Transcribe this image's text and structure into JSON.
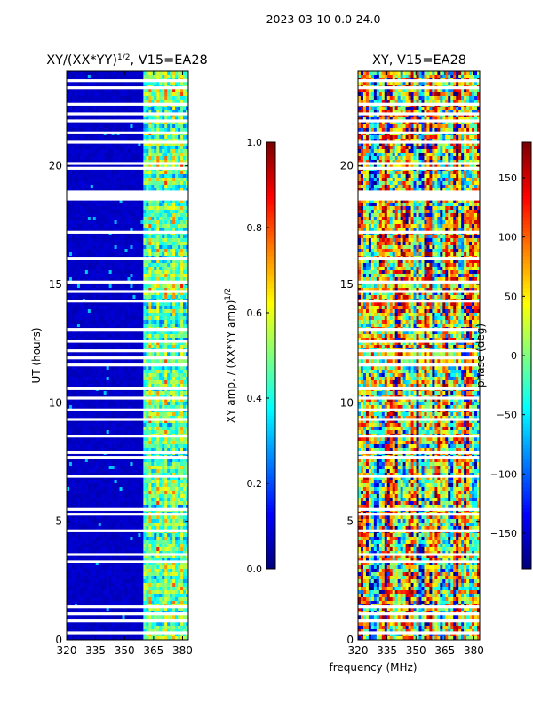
{
  "figure_title": "2023-03-10 0.0-24.0",
  "chart_data": [
    {
      "type": "heatmap",
      "title_main": "XY/(XX*YY)",
      "title_sup": "1/2",
      "title_rest": ", V15=EA28",
      "xlabel": "",
      "ylabel": "UT (hours)",
      "xlim": [
        320,
        383
      ],
      "ylim": [
        0,
        24
      ],
      "xticks": [
        320,
        335,
        350,
        365,
        380
      ],
      "yticks": [
        0,
        5,
        10,
        15,
        20
      ],
      "colormap": "jet",
      "colorbar": {
        "label_main": "XY amp. / (XX*YY amp)",
        "label_sup": "1/2",
        "range": [
          0.0,
          1.0
        ],
        "ticks": [
          "0.0",
          "0.2",
          "0.4",
          "0.6",
          "0.8",
          "1.0"
        ],
        "tick_values": [
          0.0,
          0.2,
          0.4,
          0.6,
          0.8,
          1.0
        ]
      },
      "structure": {
        "low_band_MHz": [
          320,
          360
        ],
        "low_band_level": 0.05,
        "high_band_MHz": [
          360,
          383
        ],
        "high_band_level_range": [
          0.2,
          0.75
        ],
        "flagged_blank_rows_UT": [
          0.3,
          0.8,
          1.1,
          1.4,
          3.3,
          3.6,
          4.6,
          5.3,
          5.5,
          6.9,
          7.7,
          7.9,
          8.6,
          9.3,
          9.7,
          10.2,
          10.6,
          11.6,
          11.9,
          12.2,
          12.6,
          13.1,
          14.3,
          14.7,
          15.1,
          16.1,
          17.2,
          18.6,
          18.7,
          18.8,
          18.9,
          19.9,
          20.1,
          21.0,
          21.4,
          21.9,
          22.2,
          22.6,
          23.3,
          23.6
        ]
      }
    },
    {
      "type": "heatmap",
      "title_main": "XY, V15=EA28",
      "title_sup": "",
      "title_rest": "",
      "xlabel": "frequency (MHz)",
      "ylabel": "",
      "xlim": [
        320,
        383
      ],
      "ylim": [
        0,
        24
      ],
      "xticks": [
        320,
        335,
        350,
        365,
        380
      ],
      "yticks": [
        0,
        5,
        10,
        15,
        20
      ],
      "colormap": "jet",
      "colorbar": {
        "label_main": "phase (deg)",
        "label_sup": "",
        "range": [
          -180,
          180
        ],
        "ticks": [
          "−150",
          "−100",
          "−50",
          "0",
          "50",
          "100",
          "150"
        ],
        "tick_values": [
          -150,
          -100,
          -50,
          0,
          50,
          100,
          150
        ]
      },
      "structure": {
        "phase_range_deg": [
          -180,
          180
        ],
        "flagged_blank_rows_UT": [
          0.3,
          0.8,
          1.1,
          1.4,
          3.3,
          3.6,
          4.6,
          5.3,
          5.5,
          6.9,
          7.7,
          7.9,
          8.6,
          9.3,
          9.7,
          10.2,
          10.6,
          11.6,
          11.9,
          12.2,
          12.6,
          13.1,
          14.3,
          14.7,
          15.1,
          16.1,
          17.2,
          18.6,
          18.7,
          18.8,
          18.9,
          19.9,
          20.1,
          21.0,
          21.4,
          21.9,
          22.2,
          22.6,
          23.3,
          23.6
        ]
      }
    }
  ]
}
